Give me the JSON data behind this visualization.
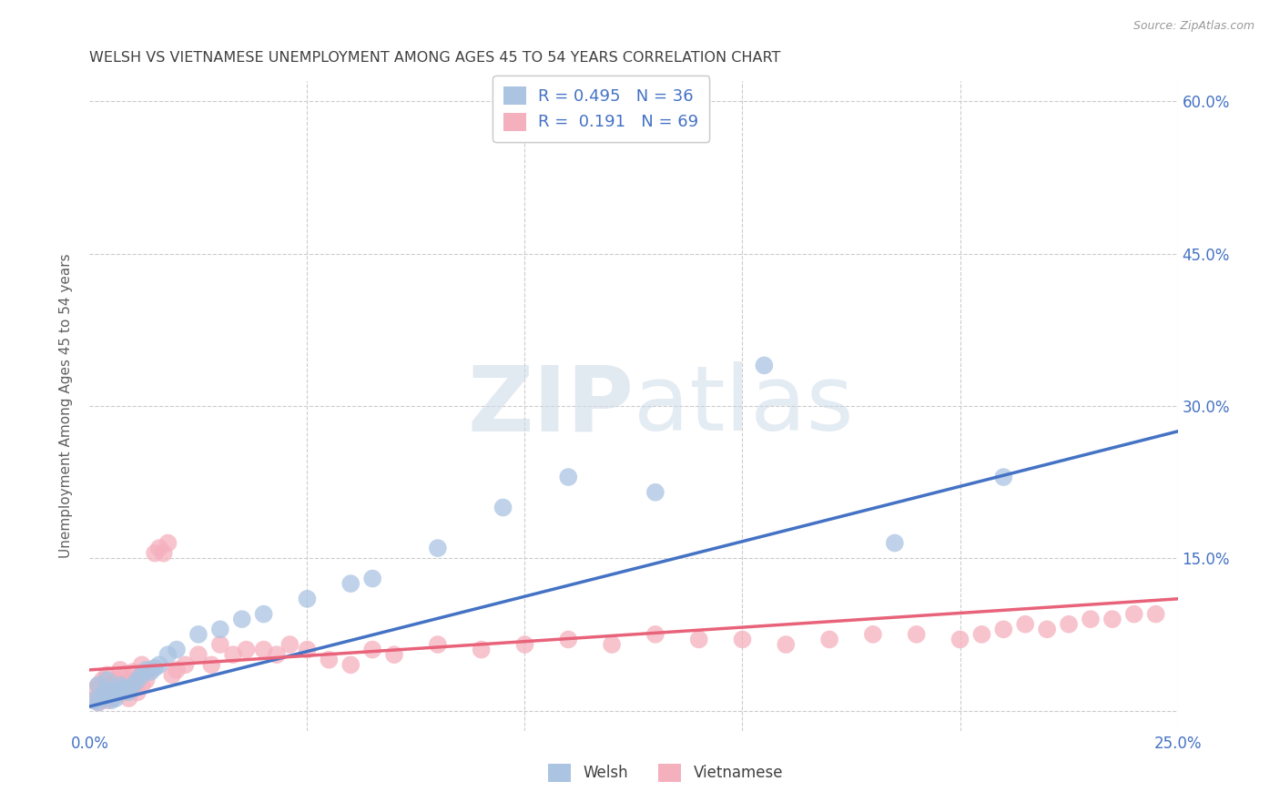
{
  "title": "WELSH VS VIETNAMESE UNEMPLOYMENT AMONG AGES 45 TO 54 YEARS CORRELATION CHART",
  "source": "Source: ZipAtlas.com",
  "ylabel": "Unemployment Among Ages 45 to 54 years",
  "xlim": [
    0.0,
    0.25
  ],
  "ylim": [
    -0.02,
    0.62
  ],
  "xticks": [
    0.0,
    0.05,
    0.1,
    0.15,
    0.2,
    0.25
  ],
  "yticks": [
    0.0,
    0.15,
    0.3,
    0.45,
    0.6
  ],
  "xtick_labels": [
    "0.0%",
    "",
    "",
    "",
    "",
    "25.0%"
  ],
  "ytick_labels_right": [
    "",
    "15.0%",
    "30.0%",
    "45.0%",
    "60.0%"
  ],
  "background_color": "#ffffff",
  "welsh_color": "#aac4e2",
  "viet_color": "#f5b0be",
  "welsh_line_color": "#4472c4",
  "viet_line_color": "#e8637a",
  "legend_text_color": "#4472c4",
  "title_color": "#404040",
  "welsh_x": [
    0.001,
    0.002,
    0.002,
    0.003,
    0.004,
    0.004,
    0.005,
    0.005,
    0.006,
    0.007,
    0.007,
    0.008,
    0.009,
    0.01,
    0.011,
    0.012,
    0.013,
    0.014,
    0.015,
    0.016,
    0.018,
    0.02,
    0.025,
    0.03,
    0.035,
    0.04,
    0.05,
    0.06,
    0.065,
    0.08,
    0.095,
    0.11,
    0.13,
    0.155,
    0.185,
    0.21
  ],
  "welsh_y": [
    0.01,
    0.008,
    0.025,
    0.015,
    0.02,
    0.03,
    0.01,
    0.018,
    0.012,
    0.02,
    0.025,
    0.022,
    0.018,
    0.025,
    0.03,
    0.035,
    0.04,
    0.038,
    0.042,
    0.045,
    0.055,
    0.06,
    0.075,
    0.08,
    0.09,
    0.095,
    0.11,
    0.125,
    0.13,
    0.16,
    0.2,
    0.23,
    0.215,
    0.34,
    0.165,
    0.23
  ],
  "viet_x": [
    0.001,
    0.001,
    0.002,
    0.002,
    0.003,
    0.003,
    0.004,
    0.004,
    0.004,
    0.005,
    0.005,
    0.006,
    0.006,
    0.007,
    0.007,
    0.008,
    0.008,
    0.009,
    0.009,
    0.01,
    0.01,
    0.011,
    0.011,
    0.012,
    0.012,
    0.013,
    0.014,
    0.015,
    0.016,
    0.017,
    0.018,
    0.019,
    0.02,
    0.022,
    0.025,
    0.028,
    0.03,
    0.033,
    0.036,
    0.04,
    0.043,
    0.046,
    0.05,
    0.055,
    0.06,
    0.065,
    0.07,
    0.08,
    0.09,
    0.1,
    0.11,
    0.12,
    0.13,
    0.14,
    0.15,
    0.16,
    0.17,
    0.18,
    0.19,
    0.2,
    0.205,
    0.21,
    0.215,
    0.22,
    0.225,
    0.23,
    0.235,
    0.24,
    0.245
  ],
  "viet_y": [
    0.01,
    0.02,
    0.008,
    0.025,
    0.015,
    0.03,
    0.01,
    0.02,
    0.035,
    0.012,
    0.025,
    0.015,
    0.03,
    0.02,
    0.04,
    0.018,
    0.035,
    0.012,
    0.028,
    0.022,
    0.038,
    0.018,
    0.032,
    0.025,
    0.045,
    0.03,
    0.04,
    0.155,
    0.16,
    0.155,
    0.165,
    0.035,
    0.04,
    0.045,
    0.055,
    0.045,
    0.065,
    0.055,
    0.06,
    0.06,
    0.055,
    0.065,
    0.06,
    0.05,
    0.045,
    0.06,
    0.055,
    0.065,
    0.06,
    0.065,
    0.07,
    0.065,
    0.075,
    0.07,
    0.07,
    0.065,
    0.07,
    0.075,
    0.075,
    0.07,
    0.075,
    0.08,
    0.085,
    0.08,
    0.085,
    0.09,
    0.09,
    0.095,
    0.095
  ],
  "welsh_line_x0": 0.0,
  "welsh_line_y0": 0.004,
  "welsh_line_x1": 0.25,
  "welsh_line_y1": 0.275,
  "viet_line_x0": 0.0,
  "viet_line_y0": 0.04,
  "viet_line_x1": 0.25,
  "viet_line_y1": 0.11
}
